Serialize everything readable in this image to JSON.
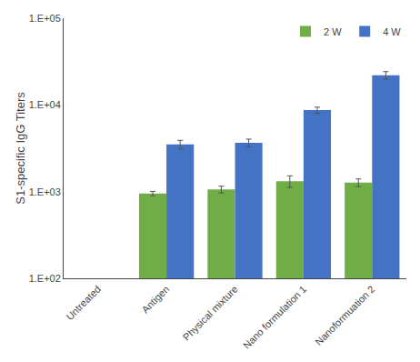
{
  "chart_data": {
    "type": "bar",
    "categories": [
      "Untreated",
      "Antigen",
      "Physical mixture",
      "Nano formulation 1",
      "Nanoformuation 2"
    ],
    "series": [
      {
        "name": "2 W",
        "color": "#70AD47",
        "values": [
          null,
          950,
          1060,
          1320,
          1270
        ],
        "errors": [
          null,
          55,
          95,
          200,
          130
        ]
      },
      {
        "name": "4 W",
        "color": "#4472C4",
        "values": [
          null,
          3500,
          3650,
          8700,
          22000
        ],
        "errors": [
          null,
          400,
          380,
          700,
          2200
        ]
      }
    ],
    "ylabel": "S1-specific IgG Titers",
    "log": "y",
    "ylim": [
      100,
      100000
    ],
    "yticks": [
      {
        "value": 100,
        "label": "1.E+02"
      },
      {
        "value": 1000,
        "label": "1.E+03"
      },
      {
        "value": 10000,
        "label": "1.E+04"
      },
      {
        "value": 100000,
        "label": "1.E+05"
      }
    ],
    "legend": "upper right",
    "grid": false
  }
}
